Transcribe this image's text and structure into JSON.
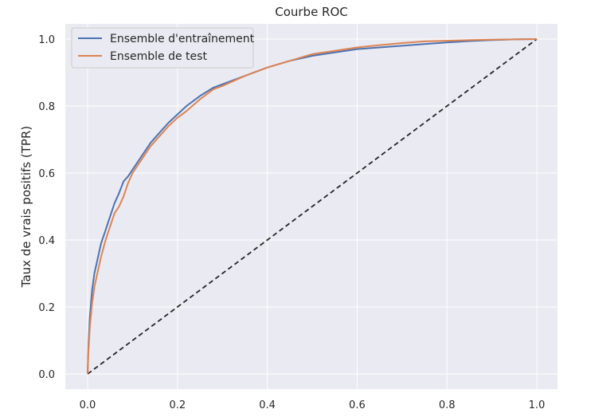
{
  "chart_data": {
    "type": "line",
    "title": "Courbe ROC",
    "xlabel": "",
    "ylabel": "Taux de vrais positifs (TPR)",
    "xlim": [
      0.0,
      1.0
    ],
    "ylim": [
      0.0,
      1.0
    ],
    "x_ticks": [
      "0.0",
      "0.2",
      "0.4",
      "0.6",
      "0.8",
      "1.0"
    ],
    "y_ticks": [
      "0.0",
      "0.2",
      "0.4",
      "0.6",
      "0.8",
      "1.0"
    ],
    "grid": true,
    "legend_position": "top-left",
    "series": [
      {
        "name": "Ensemble d'entraînement",
        "color": "#4c72b0",
        "x": [
          0.0,
          0.002,
          0.005,
          0.01,
          0.015,
          0.02,
          0.03,
          0.04,
          0.05,
          0.06,
          0.07,
          0.08,
          0.09,
          0.1,
          0.12,
          0.14,
          0.16,
          0.18,
          0.2,
          0.22,
          0.25,
          0.28,
          0.3,
          0.35,
          0.4,
          0.45,
          0.5,
          0.55,
          0.6,
          0.65,
          0.7,
          0.75,
          0.8,
          0.85,
          0.9,
          0.95,
          1.0
        ],
        "y": [
          0.0,
          0.09,
          0.17,
          0.25,
          0.3,
          0.33,
          0.39,
          0.43,
          0.47,
          0.51,
          0.54,
          0.575,
          0.59,
          0.61,
          0.65,
          0.69,
          0.72,
          0.75,
          0.775,
          0.8,
          0.83,
          0.855,
          0.865,
          0.89,
          0.915,
          0.935,
          0.95,
          0.96,
          0.97,
          0.975,
          0.98,
          0.985,
          0.99,
          0.994,
          0.997,
          0.999,
          1.0
        ]
      },
      {
        "name": "Ensemble de test",
        "color": "#dd8452",
        "x": [
          0.0,
          0.002,
          0.005,
          0.01,
          0.015,
          0.02,
          0.03,
          0.04,
          0.05,
          0.06,
          0.07,
          0.08,
          0.09,
          0.1,
          0.12,
          0.14,
          0.16,
          0.18,
          0.2,
          0.22,
          0.25,
          0.28,
          0.3,
          0.35,
          0.4,
          0.45,
          0.5,
          0.55,
          0.6,
          0.65,
          0.7,
          0.75,
          0.8,
          0.85,
          0.9,
          0.95,
          1.0
        ],
        "y": [
          0.0,
          0.07,
          0.14,
          0.21,
          0.26,
          0.29,
          0.35,
          0.4,
          0.44,
          0.48,
          0.5,
          0.53,
          0.57,
          0.6,
          0.64,
          0.68,
          0.71,
          0.74,
          0.765,
          0.785,
          0.82,
          0.85,
          0.86,
          0.89,
          0.915,
          0.935,
          0.955,
          0.965,
          0.975,
          0.982,
          0.988,
          0.993,
          0.995,
          0.997,
          0.998,
          0.999,
          1.0
        ]
      }
    ],
    "reference_line": {
      "x": [
        0.0,
        1.0
      ],
      "y": [
        0.0,
        1.0
      ],
      "color": "#262626",
      "style": "dashed"
    },
    "colors": {
      "plot_background": "#eaeaf2",
      "grid": "#ffffff",
      "text": "#262626"
    }
  }
}
